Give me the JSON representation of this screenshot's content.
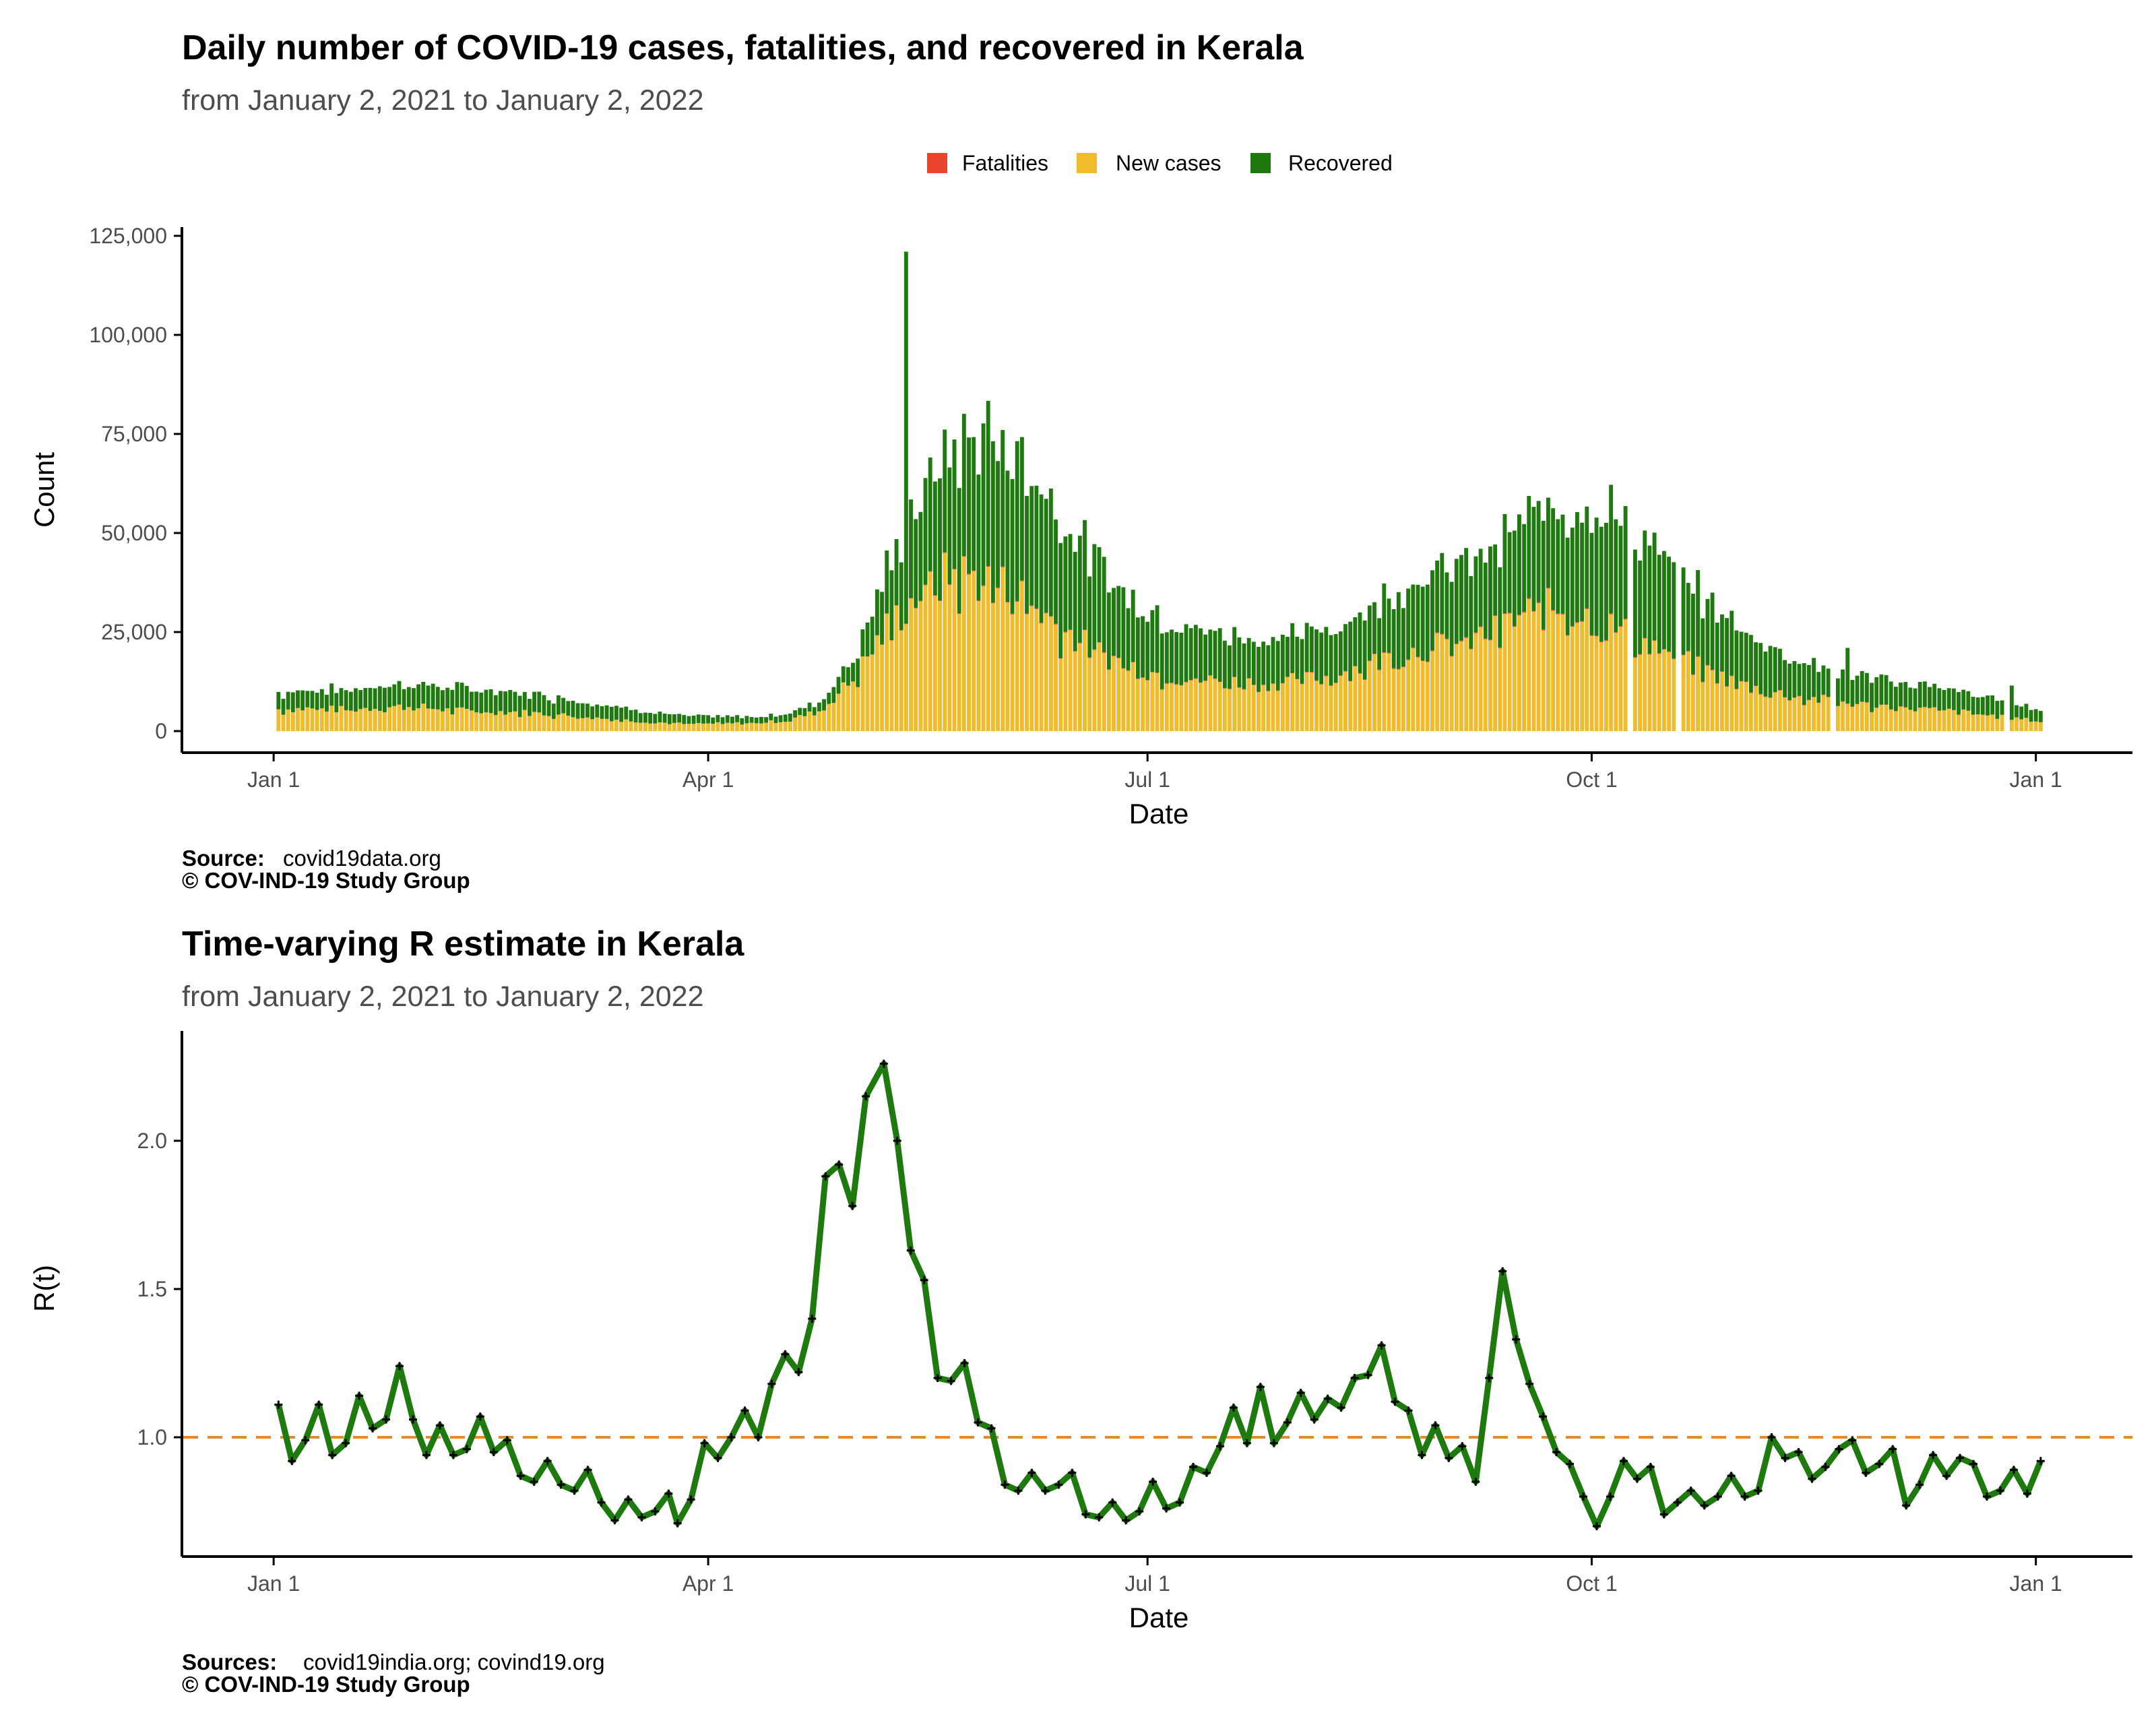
{
  "colors": {
    "fatalities": "#e8452c",
    "new_cases": "#f0bc2e",
    "recovered": "#1e7a0e",
    "r_line": "#1e7a0e",
    "reference": "#e8892c"
  },
  "chart_data": [
    {
      "type": "bar",
      "stacked": true,
      "title": "Daily number of COVID-19 cases, fatalities, and recovered in Kerala",
      "subtitle": "from January  2, 2021 to January  2, 2022",
      "xlabel": "Date",
      "ylabel": "Count",
      "ylim": [
        0,
        130000
      ],
      "yticks": [
        0,
        25000,
        50000,
        75000,
        100000,
        125000
      ],
      "ytick_labels": [
        "0",
        "25,000",
        "50,000",
        "75,000",
        "100,000",
        "125,000"
      ],
      "xticks": [
        "2021-01-01",
        "2021-04-01",
        "2021-07-01",
        "2021-10-01",
        "2022-01-01"
      ],
      "xtick_labels": [
        "Jan  1",
        "Apr  1",
        "Jul  1",
        "Oct  1",
        "Jan  1"
      ],
      "xlim": [
        "2020-12-13",
        "2022-01-21"
      ],
      "legend": [
        "Fatalities",
        "New cases",
        "Recovered"
      ],
      "legend_position": "top",
      "grid": false,
      "start_date": "2021-01-02",
      "series": [
        {
          "name": "New cases",
          "values_weekly": [
            5500,
            5700,
            5400,
            6000,
            6200,
            5300,
            5000,
            4800,
            4300,
            3600,
            2900,
            2300,
            1800,
            1900,
            2000,
            2600,
            5000,
            13000,
            26000,
            35000,
            40000,
            38000,
            34000,
            27000,
            21000,
            17000,
            14500,
            13000,
            12500,
            12000,
            12500,
            13500,
            16000,
            19000,
            21000,
            22000,
            25000,
            30000,
            31000,
            28000,
            24000,
            20000,
            16000,
            12500,
            10000,
            8500,
            7500,
            6500,
            6000,
            5300,
            4600,
            3500,
            2600
          ]
        },
        {
          "name": "Recovered",
          "values_weekly": [
            4300,
            4800,
            5000,
            5500,
            5800,
            5800,
            5400,
            5000,
            4600,
            4000,
            3300,
            2600,
            2000,
            1800,
            1600,
            1700,
            2400,
            5500,
            14000,
            25000,
            32000,
            37000,
            35000,
            30000,
            24000,
            18000,
            15000,
            13000,
            12000,
            11500,
            11500,
            12000,
            13500,
            16500,
            19000,
            20000,
            21000,
            24000,
            27000,
            29000,
            28000,
            23000,
            19000,
            15000,
            12000,
            9500,
            8000,
            7000,
            6300,
            5900,
            5000,
            4000,
            3000
          ]
        },
        {
          "name": "Fatalities",
          "values_weekly": [
            25,
            25,
            20,
            20,
            20,
            20,
            18,
            16,
            15,
            12,
            10,
            10,
            10,
            10,
            10,
            12,
            20,
            40,
            80,
            120,
            150,
            180,
            170,
            150,
            130,
            120,
            110,
            110,
            110,
            110,
            115,
            120,
            130,
            150,
            170,
            180,
            190,
            200,
            210,
            200,
            190,
            170,
            150,
            130,
            110,
            100,
            90,
            80,
            70,
            60,
            50,
            40,
            30
          ]
        }
      ],
      "annotations": {
        "peak_spike": {
          "date": "2021-05-12",
          "total": 121000
        },
        "late_spike": {
          "date": "2021-11-23",
          "total": 21000
        },
        "final_spike": {
          "date": "2021-12-27",
          "total": 11500
        },
        "gaps": [
          "2021-10-09",
          "2021-10-19",
          "2021-11-20",
          "2021-12-26"
        ]
      }
    },
    {
      "type": "line",
      "title": "Time-varying R estimate in Kerala",
      "subtitle": "from January  2, 2021 to January  2, 2022",
      "xlabel": "Date",
      "ylabel": "R(t)",
      "ylim": [
        0.65,
        2.32
      ],
      "yticks": [
        1.0,
        1.5,
        2.0
      ],
      "ytick_labels": [
        "1.0",
        "1.5",
        "2.0"
      ],
      "xticks": [
        "2021-01-01",
        "2021-04-01",
        "2021-07-01",
        "2021-10-01",
        "2022-01-01"
      ],
      "xtick_labels": [
        "Jan  1",
        "Apr  1",
        "Jul  1",
        "Oct  1",
        "Jan  1"
      ],
      "xlim": [
        "2020-12-13",
        "2022-01-21"
      ],
      "reference_line": 1.0,
      "grid": false,
      "points": [
        [
          "2021-01-02",
          1.11
        ],
        [
          "2021-01-05",
          0.92
        ],
        [
          "2021-01-08",
          0.99
        ],
        [
          "2021-01-11",
          1.11
        ],
        [
          "2021-01-14",
          0.94
        ],
        [
          "2021-01-17",
          0.98
        ],
        [
          "2021-01-20",
          1.14
        ],
        [
          "2021-01-23",
          1.03
        ],
        [
          "2021-01-26",
          1.06
        ],
        [
          "2021-01-29",
          1.24
        ],
        [
          "2021-02-01",
          1.06
        ],
        [
          "2021-02-04",
          0.94
        ],
        [
          "2021-02-07",
          1.04
        ],
        [
          "2021-02-10",
          0.94
        ],
        [
          "2021-02-13",
          0.96
        ],
        [
          "2021-02-16",
          1.07
        ],
        [
          "2021-02-19",
          0.95
        ],
        [
          "2021-02-22",
          0.99
        ],
        [
          "2021-02-25",
          0.87
        ],
        [
          "2021-02-28",
          0.85
        ],
        [
          "2021-03-03",
          0.92
        ],
        [
          "2021-03-06",
          0.84
        ],
        [
          "2021-03-09",
          0.82
        ],
        [
          "2021-03-12",
          0.89
        ],
        [
          "2021-03-15",
          0.78
        ],
        [
          "2021-03-18",
          0.72
        ],
        [
          "2021-03-21",
          0.79
        ],
        [
          "2021-03-24",
          0.73
        ],
        [
          "2021-03-27",
          0.75
        ],
        [
          "2021-03-30",
          0.81
        ],
        [
          "2021-04-01",
          0.71
        ],
        [
          "2021-04-04",
          0.79
        ],
        [
          "2021-04-07",
          0.98
        ],
        [
          "2021-04-10",
          0.93
        ],
        [
          "2021-04-13",
          1.0
        ],
        [
          "2021-04-16",
          1.09
        ],
        [
          "2021-04-19",
          1.0
        ],
        [
          "2021-04-22",
          1.18
        ],
        [
          "2021-04-25",
          1.28
        ],
        [
          "2021-04-28",
          1.22
        ],
        [
          "2021-05-01",
          1.4
        ],
        [
          "2021-05-04",
          1.88
        ],
        [
          "2021-05-07",
          1.92
        ],
        [
          "2021-05-10",
          1.78
        ],
        [
          "2021-05-13",
          2.15
        ],
        [
          "2021-05-17",
          2.26
        ],
        [
          "2021-05-20",
          2.0
        ],
        [
          "2021-05-23",
          1.63
        ],
        [
          "2021-05-26",
          1.53
        ],
        [
          "2021-05-29",
          1.2
        ],
        [
          "2021-06-01",
          1.19
        ],
        [
          "2021-06-04",
          1.25
        ],
        [
          "2021-06-07",
          1.05
        ],
        [
          "2021-06-10",
          1.03
        ],
        [
          "2021-06-13",
          0.84
        ],
        [
          "2021-06-16",
          0.82
        ],
        [
          "2021-06-19",
          0.88
        ],
        [
          "2021-06-22",
          0.82
        ],
        [
          "2021-06-25",
          0.84
        ],
        [
          "2021-06-28",
          0.88
        ],
        [
          "2021-07-01",
          0.74
        ],
        [
          "2021-07-04",
          0.73
        ],
        [
          "2021-07-07",
          0.78
        ],
        [
          "2021-07-10",
          0.72
        ],
        [
          "2021-07-13",
          0.75
        ],
        [
          "2021-07-16",
          0.85
        ],
        [
          "2021-07-19",
          0.76
        ],
        [
          "2021-07-22",
          0.78
        ],
        [
          "2021-07-25",
          0.9
        ],
        [
          "2021-07-28",
          0.88
        ],
        [
          "2021-07-31",
          0.97
        ],
        [
          "2021-08-03",
          1.1
        ],
        [
          "2021-08-06",
          0.98
        ],
        [
          "2021-08-09",
          1.17
        ],
        [
          "2021-08-12",
          0.98
        ],
        [
          "2021-08-15",
          1.05
        ],
        [
          "2021-08-18",
          1.15
        ],
        [
          "2021-08-21",
          1.06
        ],
        [
          "2021-08-24",
          1.13
        ],
        [
          "2021-08-27",
          1.1
        ],
        [
          "2021-08-30",
          1.2
        ],
        [
          "2021-09-02",
          1.21
        ],
        [
          "2021-09-05",
          1.31
        ],
        [
          "2021-09-08",
          1.12
        ],
        [
          "2021-09-11",
          1.09
        ],
        [
          "2021-09-14",
          0.94
        ],
        [
          "2021-09-17",
          1.04
        ],
        [
          "2021-09-20",
          0.93
        ],
        [
          "2021-09-23",
          0.97
        ],
        [
          "2021-09-26",
          0.85
        ],
        [
          "2021-09-29",
          1.2
        ],
        [
          "2021-10-02",
          1.56
        ],
        [
          "2021-10-05",
          1.33
        ],
        [
          "2021-10-08",
          1.18
        ],
        [
          "2021-10-11",
          1.07
        ],
        [
          "2021-10-14",
          0.95
        ],
        [
          "2021-10-17",
          0.91
        ],
        [
          "2021-10-20",
          0.8
        ],
        [
          "2021-10-23",
          0.7
        ],
        [
          "2021-10-26",
          0.8
        ],
        [
          "2021-10-29",
          0.92
        ],
        [
          "2021-11-01",
          0.86
        ],
        [
          "2021-11-04",
          0.9
        ],
        [
          "2021-11-07",
          0.74
        ],
        [
          "2021-11-10",
          0.78
        ],
        [
          "2021-11-13",
          0.82
        ],
        [
          "2021-11-16",
          0.77
        ],
        [
          "2021-11-19",
          0.8
        ],
        [
          "2021-11-22",
          0.87
        ],
        [
          "2021-11-25",
          0.8
        ],
        [
          "2021-11-28",
          0.82
        ],
        [
          "2021-12-01",
          1.0
        ],
        [
          "2021-12-04",
          0.93
        ],
        [
          "2021-12-07",
          0.95
        ],
        [
          "2021-12-10",
          0.86
        ],
        [
          "2021-12-13",
          0.9
        ],
        [
          "2021-12-16",
          0.96
        ],
        [
          "2021-12-19",
          0.99
        ],
        [
          "2021-12-22",
          0.88
        ],
        [
          "2021-12-25",
          0.91
        ],
        [
          "2021-12-28",
          0.96
        ],
        [
          "2021-12-31",
          0.77
        ],
        [
          "2022-01-03",
          0.84
        ],
        [
          "2022-01-06",
          0.94
        ],
        [
          "2022-01-09",
          0.87
        ],
        [
          "2022-01-12",
          0.93
        ],
        [
          "2022-01-15",
          0.91
        ],
        [
          "2022-01-18",
          0.8
        ],
        [
          "2022-01-21",
          0.82
        ],
        [
          "2022-01-24",
          0.89
        ],
        [
          "2022-01-27",
          0.81
        ],
        [
          "2022-01-30",
          0.92
        ]
      ]
    }
  ],
  "captions": {
    "top": {
      "label": "Source:",
      "text": "covid19data.org",
      "copyright": "© COV-IND-19 Study Group"
    },
    "bottom": {
      "label": "Sources:",
      "text": "covid19india.org; covind19.org",
      "copyright": "© COV-IND-19 Study Group"
    }
  }
}
